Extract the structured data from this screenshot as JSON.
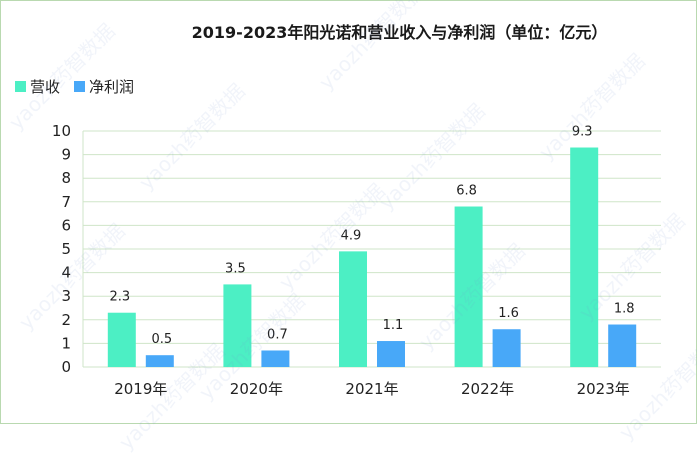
{
  "watermark": "yaozh药智数据",
  "chart_data": {
    "type": "bar",
    "title": "2019-2023年阳光诺和营业收入与净利润（单位：亿元）",
    "categories": [
      "2019年",
      "2020年",
      "2021年",
      "2022年",
      "2023年"
    ],
    "series": [
      {
        "name": "营收",
        "color": "#4cefc4",
        "values": [
          2.3,
          3.5,
          4.9,
          6.8,
          9.3
        ]
      },
      {
        "name": "净利润",
        "color": "#48a8f8",
        "values": [
          0.5,
          0.7,
          1.1,
          1.6,
          1.8
        ]
      }
    ],
    "ylim": [
      0,
      10
    ],
    "yticks": [
      0,
      1,
      2,
      3,
      4,
      5,
      6,
      7,
      8,
      9,
      10
    ],
    "grid": true,
    "legend_position": "top-left"
  }
}
